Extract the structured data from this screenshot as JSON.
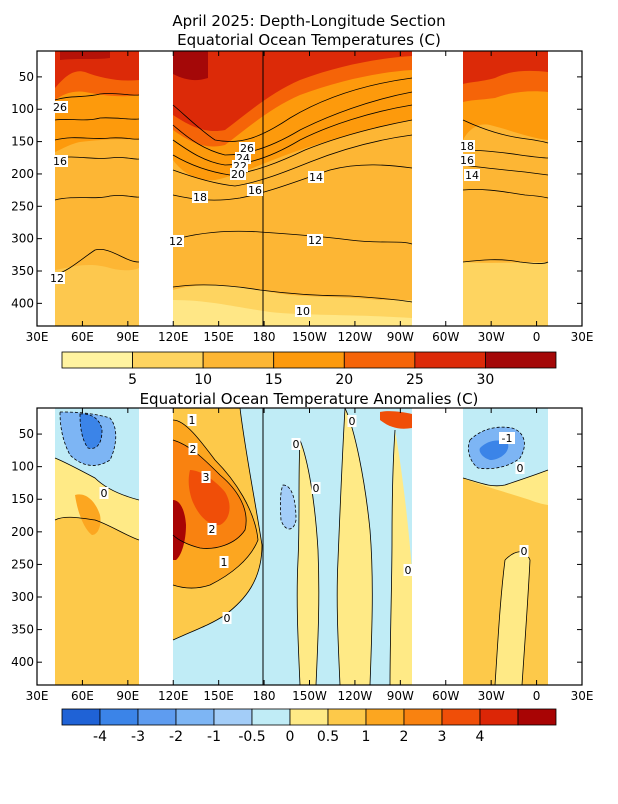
{
  "figure": {
    "title_line1": "April 2025: Depth-Longitude Section",
    "title_line2": "Equatorial Ocean Temperatures (C)",
    "anom_title": "Equatorial Ocean Temperature Anomalies (C)"
  },
  "axes": {
    "xticks": [
      "30E",
      "60E",
      "90E",
      "120E",
      "150E",
      "180",
      "150W",
      "120W",
      "90W",
      "60W",
      "30W",
      "0",
      "30E"
    ],
    "yticks": [
      "50",
      "100",
      "150",
      "200",
      "250",
      "300",
      "350",
      "400"
    ],
    "depth_range": [
      10,
      435
    ],
    "longitude_range_deg_east": [
      30,
      390
    ]
  },
  "colorbars": {
    "temperature": {
      "colors": [
        "#fff3a0",
        "#fed460",
        "#fdb634",
        "#fd9a0c",
        "#f56408",
        "#dc2a08",
        "#a40808"
      ],
      "labels": [
        "5",
        "10",
        "15",
        "20",
        "25",
        "30"
      ]
    },
    "anomaly": {
      "colors": [
        "#1f62d6",
        "#3b84e8",
        "#5e9cf0",
        "#7db5f4",
        "#a3cdf8",
        "#c0ecf6",
        "#ffea86",
        "#fdc94a",
        "#fca620",
        "#f98210",
        "#f04e08",
        "#dc2606",
        "#a80404"
      ],
      "labels": [
        "-4",
        "-3",
        "-2",
        "-1",
        "-0.5",
        "0",
        "0.5",
        "1",
        "2",
        "3",
        "4"
      ]
    }
  },
  "chart_data": [
    {
      "type": "heatmap",
      "title": "April 2025: Depth-Longitude Section\nEquatorial Ocean Temperatures (C)",
      "xlabel": "",
      "ylabel": "",
      "x_range_lon_east": [
        30,
        390
      ],
      "y_range_depth_m": [
        10,
        435
      ],
      "y_inverted": true,
      "data_gaps_lon_east": [
        [
          30,
          41
        ],
        [
          97,
          120
        ],
        [
          270,
          302
        ],
        [
          375,
          390
        ]
      ],
      "date_line_lon": 180,
      "contour_levels": [
        10,
        12,
        14,
        16,
        18,
        20,
        22,
        24,
        26
      ],
      "contour_labels": [
        "26",
        "16",
        "12",
        "26",
        "24",
        "22",
        "20",
        "18",
        "16",
        "14",
        "12",
        "12",
        "10",
        "18",
        "16",
        "14"
      ],
      "profiles": [
        {
          "lon": 45,
          "mixed_layer_top": 29,
          "d26": 95,
          "d20": 150,
          "d16": 185,
          "d12": 365
        },
        {
          "lon": 70,
          "mixed_layer_top": 29,
          "d26": 80,
          "d20": 140,
          "d16": 175,
          "d12": 300
        },
        {
          "lon": 90,
          "mixed_layer_top": 29,
          "d26": 80,
          "d20": 145,
          "d16": 175,
          "d12": 335
        },
        {
          "lon": 130,
          "mixed_layer_top": 30,
          "d26": 95,
          "d20": 140,
          "d16": 195,
          "d12": 290
        },
        {
          "lon": 145,
          "mixed_layer_top": 30,
          "d26": 150,
          "d20": 170,
          "d16": 215,
          "d12": 295
        },
        {
          "lon": 165,
          "mixed_layer_top": 29,
          "d26": 165,
          "d20": 195,
          "d16": 225,
          "d12": 285
        },
        {
          "lon": 180,
          "mixed_layer_top": 29,
          "d26": 150,
          "d20": 180,
          "d16": 205,
          "d12": 280
        },
        {
          "lon": 210,
          "mixed_layer_top": 28,
          "d26": 90,
          "d20": 125,
          "d16": 160,
          "d12": 285
        },
        {
          "lon": 240,
          "mixed_layer_top": 27,
          "d26": 45,
          "d20": 80,
          "d16": 120,
          "d12": 290
        },
        {
          "lon": 265,
          "mixed_layer_top": 27,
          "d26": 25,
          "d20": 45,
          "d16": 100,
          "d12": 325
        },
        {
          "lon": 310,
          "mixed_layer_top": 28,
          "d26": 20,
          "d20": 95,
          "d16": 165,
          "d12": 345
        },
        {
          "lon": 330,
          "mixed_layer_top": 28,
          "d26": 40,
          "d20": 115,
          "d16": 170,
          "d12": 350
        },
        {
          "lon": 365,
          "mixed_layer_top": 28,
          "d26": 50,
          "d20": 115,
          "d16": 160,
          "d12": 340
        }
      ]
    },
    {
      "type": "heatmap",
      "title": "Equatorial Ocean Temperature Anomalies (C)",
      "xlabel": "",
      "ylabel": "",
      "x_range_lon_east": [
        30,
        390
      ],
      "y_range_depth_m": [
        10,
        435
      ],
      "y_inverted": true,
      "data_gaps_lon_east": [
        [
          30,
          41
        ],
        [
          97,
          120
        ],
        [
          270,
          302
        ],
        [
          375,
          390
        ]
      ],
      "date_line_lon": 180,
      "contour_levels": [
        -1,
        0,
        1,
        2,
        3
      ],
      "contour_labels": [
        "1",
        "2",
        "3",
        "2",
        "1",
        "0",
        "0",
        "0",
        "0",
        "0",
        "-1",
        "0",
        "0",
        "0"
      ],
      "features": [
        {
          "lon": 65,
          "depth": 45,
          "value": -2.5
        },
        {
          "lon": 80,
          "depth": 150,
          "value": 1.5
        },
        {
          "lon": 135,
          "depth": 150,
          "value": 3.5
        },
        {
          "lon": 160,
          "depth": 130,
          "value": 2.5
        },
        {
          "lon": 150,
          "depth": 250,
          "value": 1.0
        },
        {
          "lon": 200,
          "depth": 200,
          "value": -0.5
        },
        {
          "lon": 230,
          "depth": 250,
          "value": 0.3
        },
        {
          "lon": 250,
          "depth": 180,
          "value": -0.4
        },
        {
          "lon": 320,
          "depth": 80,
          "value": -1.5
        },
        {
          "lon": 360,
          "depth": 200,
          "value": 0.8
        }
      ]
    }
  ]
}
